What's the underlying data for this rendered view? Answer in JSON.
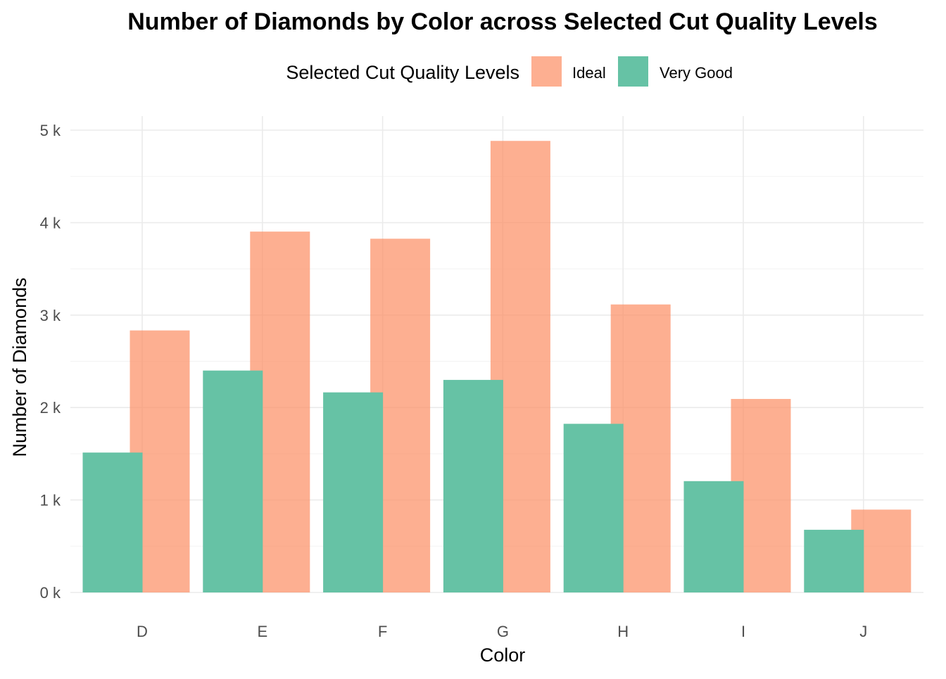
{
  "chart_data": {
    "type": "bar",
    "title": "Number of Diamonds by Color across Selected Cut Quality Levels",
    "xlabel": "Color",
    "ylabel": "Number of Diamonds",
    "categories": [
      "D",
      "E",
      "F",
      "G",
      "H",
      "I",
      "J"
    ],
    "series": [
      {
        "name": "Ideal",
        "color": "#FC8D62",
        "opacity": 0.7,
        "values": [
          2834,
          3903,
          3826,
          4884,
          3115,
          2093,
          896
        ]
      },
      {
        "name": "Very Good",
        "color": "#66C2A5",
        "opacity": 1.0,
        "values": [
          1513,
          2400,
          2164,
          2299,
          1824,
          1204,
          678
        ]
      }
    ],
    "ylim": [
      0,
      5000
    ],
    "y_ticks": [
      0,
      1000,
      2000,
      3000,
      4000,
      5000
    ],
    "y_tick_labels": [
      "0 k",
      "1 k",
      "2 k",
      "3 k",
      "4 k",
      "5 k"
    ],
    "legend": {
      "title": "Selected Cut Quality Levels",
      "position": "top"
    },
    "grid": true,
    "bars_overlap": true
  }
}
